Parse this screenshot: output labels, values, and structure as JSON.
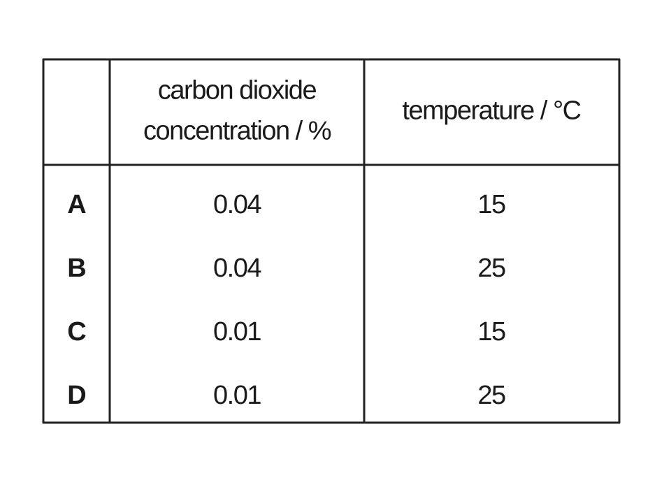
{
  "table": {
    "header": [
      [
        "carbon dioxide",
        "concentration / %"
      ],
      [
        "temperature / °C"
      ]
    ],
    "rows": [
      [
        "A",
        "0.04",
        "15"
      ],
      [
        "B",
        "0.04",
        "25"
      ],
      [
        "C",
        "0.01",
        "15"
      ],
      [
        "D",
        "0.01",
        "25"
      ]
    ]
  }
}
